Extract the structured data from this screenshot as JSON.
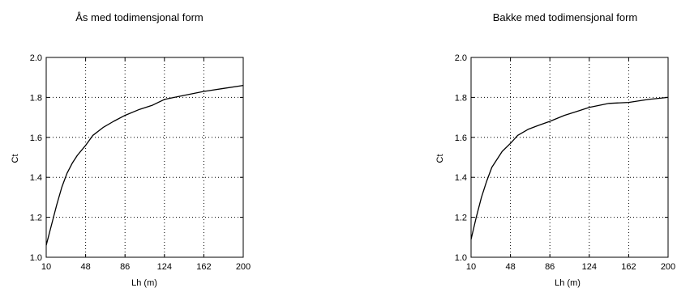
{
  "chart_data": [
    {
      "type": "line",
      "title": "Ås med todimensjonal form",
      "xlabel": "Lh (m)",
      "ylabel": "Ct",
      "xlim": [
        10,
        200
      ],
      "ylim": [
        1.0,
        2.0
      ],
      "xticks": [
        10,
        48,
        86,
        124,
        162,
        200
      ],
      "yticks": [
        1.0,
        1.2,
        1.4,
        1.6,
        1.8,
        2.0
      ],
      "xtick_labels": [
        "10",
        "48",
        "86",
        "124",
        "162",
        "200"
      ],
      "ytick_labels": [
        "1.0",
        "1.2",
        "1.4",
        "1.6",
        "1.8",
        "2.0"
      ],
      "grid": true,
      "series": [
        {
          "x": [
            10,
            15,
            20,
            25,
            30,
            35,
            40,
            48,
            55,
            65,
            75,
            86,
            100,
            112,
            124,
            143,
            162,
            181,
            200
          ],
          "y": [
            1.06,
            1.16,
            1.26,
            1.35,
            1.42,
            1.47,
            1.51,
            1.56,
            1.61,
            1.65,
            1.68,
            1.71,
            1.74,
            1.76,
            1.79,
            1.81,
            1.83,
            1.845,
            1.86
          ]
        }
      ]
    },
    {
      "type": "line",
      "title": "Bakke med todimensjonal form",
      "xlabel": "Lh (m)",
      "ylabel": "Ct",
      "xlim": [
        10,
        200
      ],
      "ylim": [
        1.0,
        2.0
      ],
      "xticks": [
        10,
        48,
        86,
        124,
        162,
        200
      ],
      "yticks": [
        1.0,
        1.2,
        1.4,
        1.6,
        1.8,
        2.0
      ],
      "xtick_labels": [
        "10",
        "48",
        "86",
        "124",
        "162",
        "200"
      ],
      "ytick_labels": [
        "1.0",
        "1.2",
        "1.4",
        "1.6",
        "1.8",
        "2.0"
      ],
      "grid": true,
      "series": [
        {
          "x": [
            10,
            15,
            20,
            25,
            30,
            35,
            40,
            48,
            55,
            65,
            75,
            86,
            100,
            112,
            124,
            143,
            162,
            181,
            200
          ],
          "y": [
            1.09,
            1.2,
            1.3,
            1.38,
            1.45,
            1.49,
            1.53,
            1.57,
            1.61,
            1.64,
            1.66,
            1.68,
            1.71,
            1.73,
            1.75,
            1.77,
            1.775,
            1.79,
            1.8
          ]
        }
      ]
    }
  ]
}
